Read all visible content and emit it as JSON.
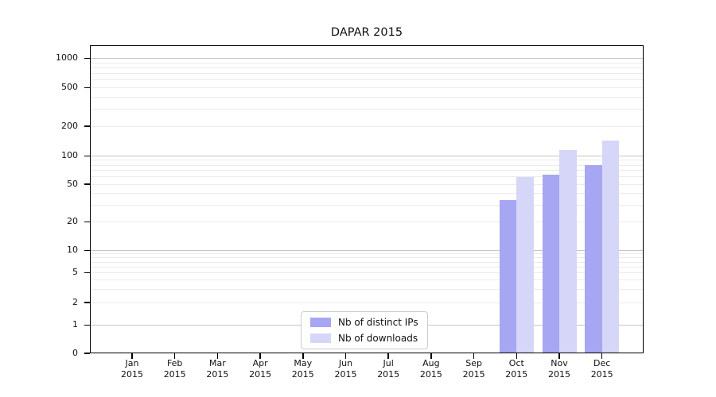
{
  "title": "DAPAR 2015",
  "chart_data": {
    "type": "bar",
    "title": "DAPAR 2015",
    "categories": [
      "Jan",
      "Feb",
      "Mar",
      "Apr",
      "May",
      "Jun",
      "Jul",
      "Aug",
      "Sep",
      "Oct",
      "Nov",
      "Dec"
    ],
    "category_year": "2015",
    "series": [
      {
        "name": "Nb of distinct IPs",
        "color": "#a6a6f2",
        "values": [
          0,
          0,
          0,
          0,
          0,
          0,
          0,
          0,
          0,
          34,
          63,
          80
        ]
      },
      {
        "name": "Nb of downloads",
        "color": "#d6d6f8",
        "values": [
          0,
          0,
          0,
          0,
          0,
          0,
          0,
          0,
          0,
          59,
          114,
          143
        ]
      }
    ],
    "y_ticks": [
      0,
      1,
      2,
      5,
      10,
      20,
      50,
      100,
      200,
      500,
      1000
    ],
    "scale": "symlog",
    "ylim": [
      0,
      1350
    ],
    "grid": true,
    "legend_position": "lower center",
    "colors": {
      "major_grid": "#c6c6c6",
      "minor_grid": "#ebebeb",
      "axis": "#000000",
      "text": "#111111",
      "background": "#ffffff"
    }
  }
}
